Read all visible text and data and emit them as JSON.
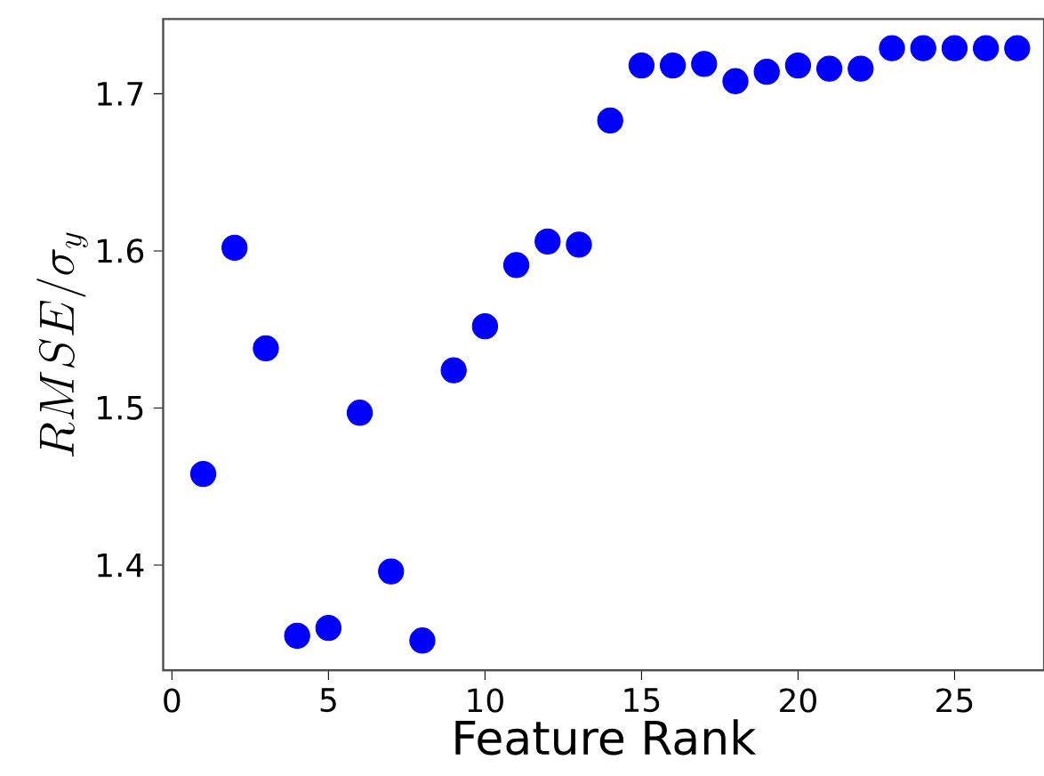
{
  "chart_data": {
    "type": "scatter",
    "xlabel": "Feature Rank",
    "ylabel": "RMSE/\\sigma_y",
    "x": [
      1,
      2,
      3,
      4,
      5,
      6,
      7,
      8,
      9,
      10,
      11,
      12,
      13,
      14,
      15,
      16,
      17,
      18,
      19,
      20,
      21,
      22,
      23,
      24,
      25,
      26,
      27
    ],
    "series": [
      {
        "color": "#0000ff",
        "values": [
          1.458,
          1.602,
          1.538,
          1.355,
          1.36,
          1.497,
          1.396,
          1.352,
          1.524,
          1.552,
          1.591,
          1.606,
          1.604,
          1.683,
          1.718,
          1.718,
          1.719,
          1.708,
          1.714,
          1.718,
          1.716,
          1.716,
          1.729,
          1.729,
          1.729,
          1.729,
          1.729
        ]
      }
    ],
    "xlim": [
      -0.28,
      27.86
    ],
    "ylim": [
      1.333,
      1.7476
    ],
    "xticks": [
      0,
      5,
      10,
      15,
      20,
      25
    ],
    "yticks": [
      1.4,
      1.5,
      1.6,
      1.7
    ],
    "marker": "circle",
    "grid": false
  }
}
